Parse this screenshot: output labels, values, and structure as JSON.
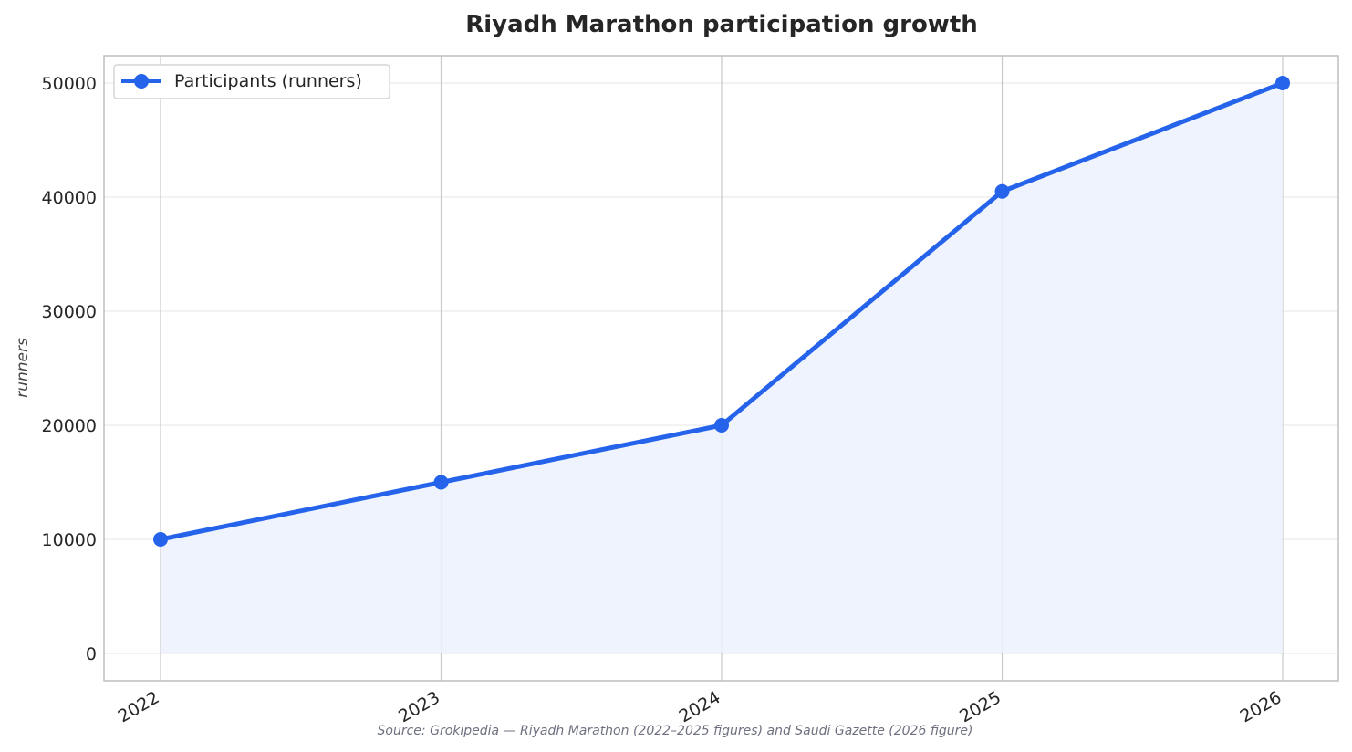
{
  "chart_data": {
    "type": "line",
    "title": "Riyadh Marathon participation growth",
    "xlabel": "",
    "ylabel": "runners",
    "categories": [
      "2022",
      "2023",
      "2024",
      "2025",
      "2026"
    ],
    "series": [
      {
        "name": "Participants (runners)",
        "values": [
          10000,
          15000,
          20000,
          40500,
          50000
        ],
        "color": "#2563eb",
        "fill": "#ecf1fd"
      }
    ],
    "y_ticks": [
      0,
      10000,
      20000,
      30000,
      40000,
      50000
    ],
    "ylim": [
      -2400,
      52400
    ],
    "grid": true,
    "area_fill": true,
    "legend_position": "top-left"
  },
  "source_note": "Source: Grokipedia — Riyadh Marathon (2022–2025 figures) and Saudi Gazette (2026 figure)"
}
